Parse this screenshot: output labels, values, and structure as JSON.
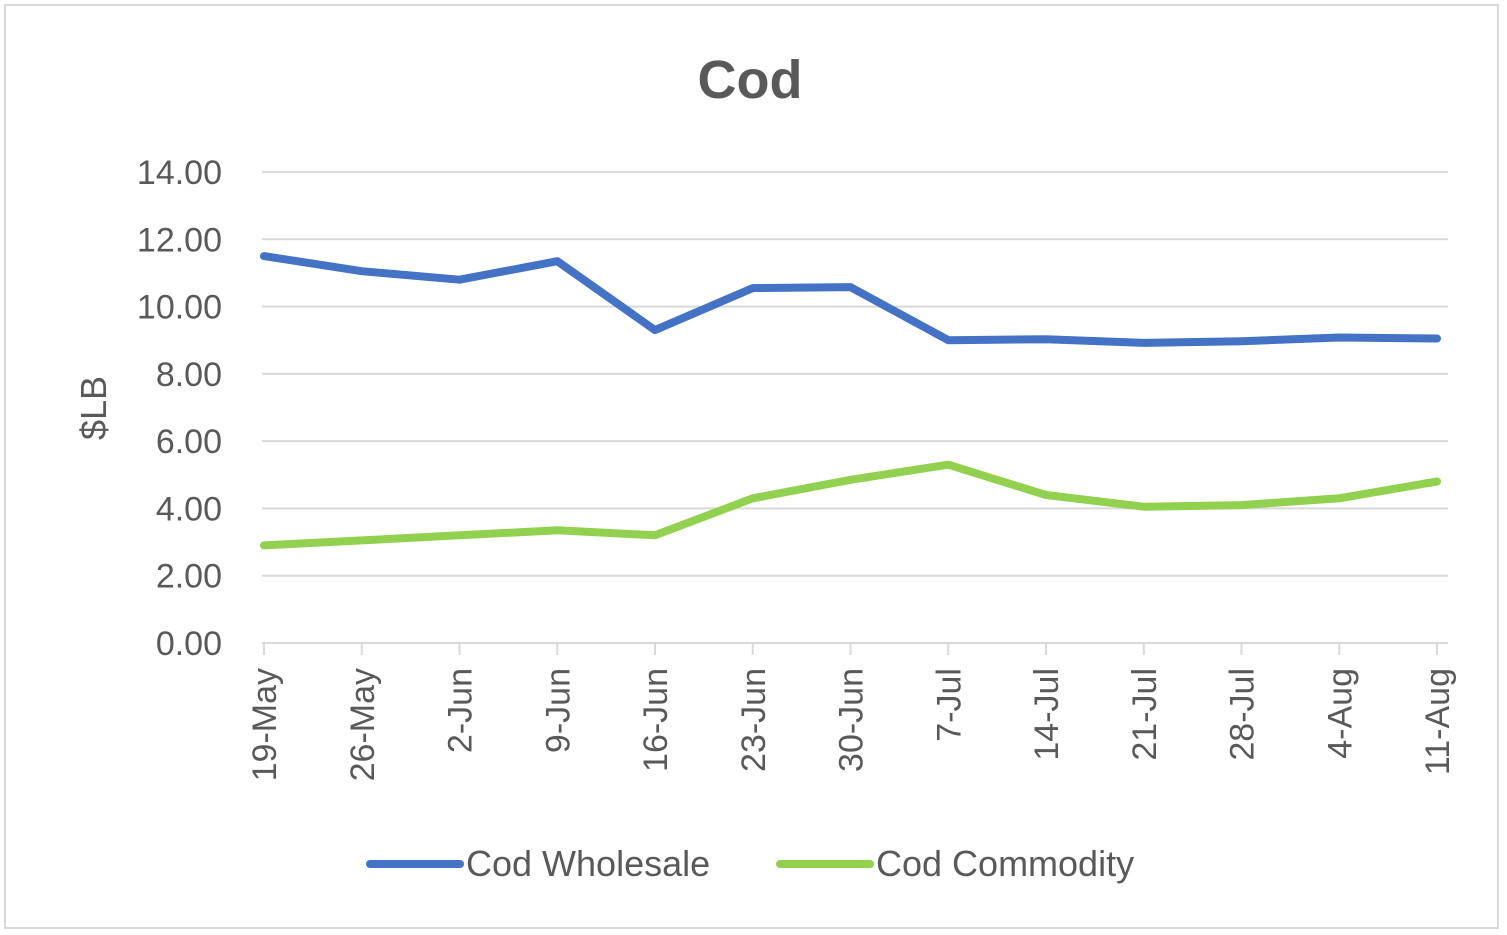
{
  "chart_data": {
    "type": "line",
    "title": "Cod",
    "xlabel": "",
    "ylabel": "$LB",
    "ylim": [
      0,
      14
    ],
    "yticks": [
      "0.00",
      "2.00",
      "4.00",
      "6.00",
      "8.00",
      "10.00",
      "12.00",
      "14.00"
    ],
    "grid": "horizontal",
    "legend_position": "bottom",
    "categories": [
      "19-May",
      "26-May",
      "2-Jun",
      "9-Jun",
      "16-Jun",
      "23-Jun",
      "30-Jun",
      "7-Jul",
      "14-Jul",
      "21-Jul",
      "28-Jul",
      "4-Aug",
      "11-Aug"
    ],
    "series": [
      {
        "name": "Cod Wholesale",
        "color": "#4472c4",
        "values": [
          11.5,
          11.05,
          10.8,
          11.35,
          9.3,
          10.55,
          10.58,
          9.0,
          9.03,
          8.92,
          8.97,
          9.08,
          9.05
        ]
      },
      {
        "name": "Cod Commodity",
        "color": "#92d050",
        "values": [
          2.9,
          3.05,
          3.2,
          3.35,
          3.2,
          4.3,
          4.85,
          5.3,
          4.4,
          4.05,
          4.1,
          4.3,
          4.8
        ]
      }
    ]
  }
}
